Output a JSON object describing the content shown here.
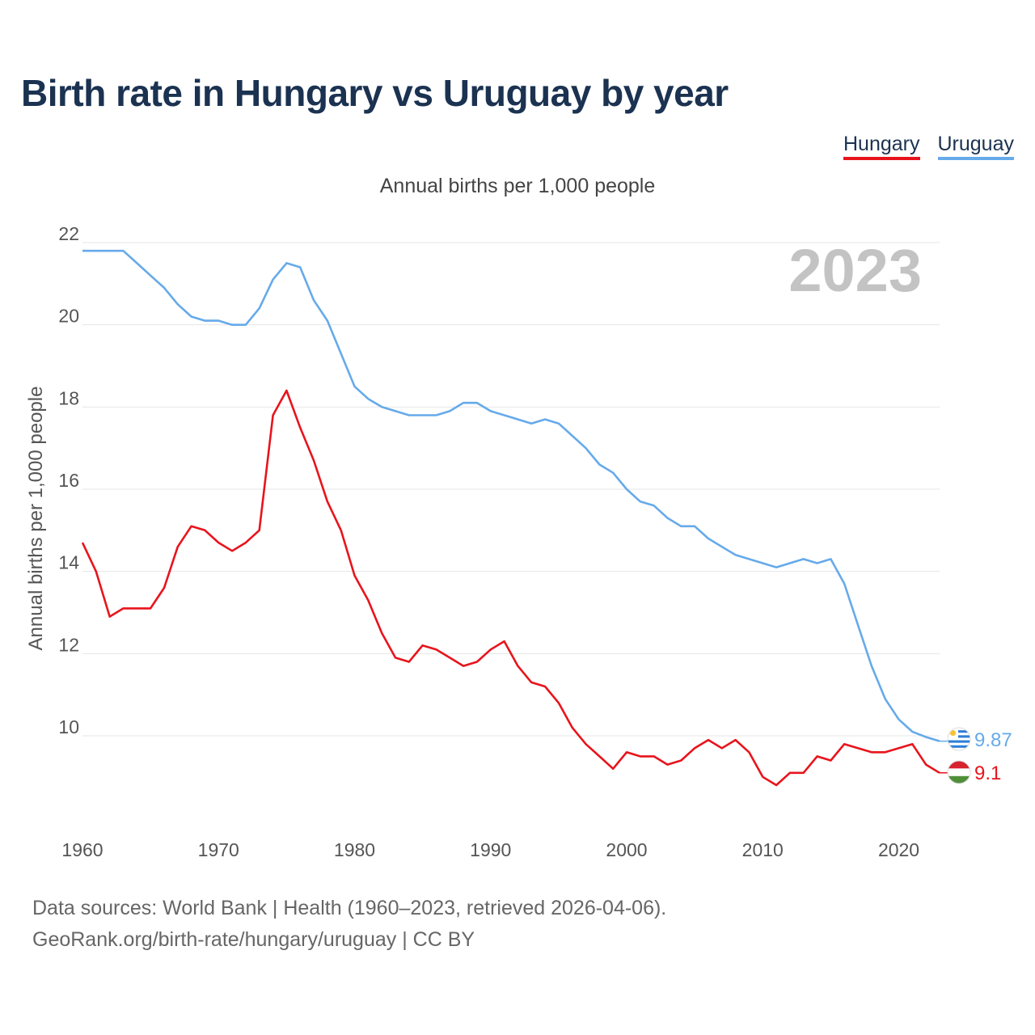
{
  "title": "Birth rate in Hungary vs Uruguay by year",
  "legend": {
    "hungary_label": "Hungary",
    "uruguay_label": "Uruguay"
  },
  "subtitle": "Annual births per 1,000 people",
  "footer": {
    "line1": "Data sources: World Bank | Health (1960–2023, retrieved 2026-04-06).",
    "line2": "GeoRank.org/birth-rate/hungary/uruguay | CC BY"
  },
  "colors": {
    "hungary": "#e8141c",
    "uruguay": "#66aaea",
    "year_watermark": "#c3c3c3"
  },
  "chart_data": {
    "type": "line",
    "title": "Birth rate in Hungary vs Uruguay by year",
    "ylabel": "Annual births per 1,000 people",
    "xlabel": "",
    "year_label": "2023",
    "xlim": [
      1960,
      2023
    ],
    "ylim": [
      8,
      22
    ],
    "x_ticks": [
      1960,
      1970,
      1980,
      1990,
      2000,
      2010,
      2020
    ],
    "y_ticks": [
      10,
      12,
      14,
      16,
      18,
      20,
      22
    ],
    "grid": true,
    "legend_position": "top-right",
    "x": [
      1960,
      1961,
      1962,
      1963,
      1964,
      1965,
      1966,
      1967,
      1968,
      1969,
      1970,
      1971,
      1972,
      1973,
      1974,
      1975,
      1976,
      1977,
      1978,
      1979,
      1980,
      1981,
      1982,
      1983,
      1984,
      1985,
      1986,
      1987,
      1988,
      1989,
      1990,
      1991,
      1992,
      1993,
      1994,
      1995,
      1996,
      1997,
      1998,
      1999,
      2000,
      2001,
      2002,
      2003,
      2004,
      2005,
      2006,
      2007,
      2008,
      2009,
      2010,
      2011,
      2012,
      2013,
      2014,
      2015,
      2016,
      2017,
      2018,
      2019,
      2020,
      2021,
      2022,
      2023
    ],
    "series": [
      {
        "name": "Hungary",
        "end_label": "9.1",
        "flag": "hungary-flag",
        "values": [
          14.7,
          14.0,
          12.9,
          13.1,
          13.1,
          13.1,
          13.6,
          14.6,
          15.1,
          15.0,
          14.7,
          14.5,
          14.7,
          15.0,
          17.8,
          18.4,
          17.5,
          16.7,
          15.7,
          15.0,
          13.9,
          13.3,
          12.5,
          11.9,
          11.8,
          12.2,
          12.1,
          11.9,
          11.7,
          11.8,
          12.1,
          12.3,
          11.7,
          11.3,
          11.2,
          10.8,
          10.2,
          9.8,
          9.5,
          9.2,
          9.6,
          9.5,
          9.5,
          9.3,
          9.4,
          9.7,
          9.9,
          9.7,
          9.9,
          9.6,
          9.0,
          8.8,
          9.1,
          9.1,
          9.5,
          9.4,
          9.8,
          9.7,
          9.6,
          9.6,
          9.7,
          9.8,
          9.3,
          9.1
        ]
      },
      {
        "name": "Uruguay",
        "end_label": "9.87",
        "flag": "uruguay-flag",
        "values": [
          21.8,
          21.8,
          21.8,
          21.8,
          21.5,
          21.2,
          20.9,
          20.5,
          20.2,
          20.1,
          20.1,
          20.0,
          20.0,
          20.4,
          21.1,
          21.5,
          21.4,
          20.6,
          20.1,
          19.3,
          18.5,
          18.2,
          18.0,
          17.9,
          17.8,
          17.8,
          17.8,
          17.9,
          18.1,
          18.1,
          17.9,
          17.8,
          17.7,
          17.6,
          17.7,
          17.6,
          17.3,
          17.0,
          16.6,
          16.4,
          16.0,
          15.7,
          15.6,
          15.3,
          15.1,
          15.1,
          14.8,
          14.6,
          14.4,
          14.3,
          14.2,
          14.1,
          14.2,
          14.3,
          14.2,
          14.3,
          13.7,
          12.7,
          11.7,
          10.9,
          10.4,
          10.1,
          9.97,
          9.87
        ]
      }
    ]
  }
}
